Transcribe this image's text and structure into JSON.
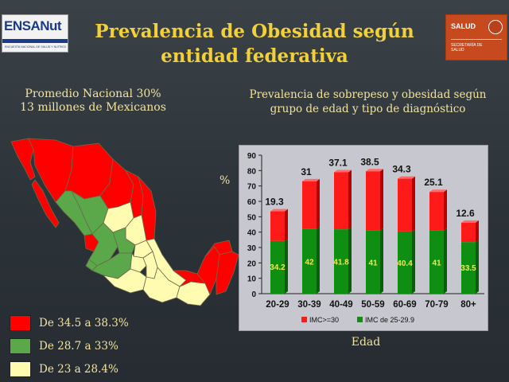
{
  "header": {
    "title_line1": "Prevalencia de Obesidad según",
    "title_line2": "entidad federativa",
    "logo_left_text": "ENSANut",
    "logo_left_subtext": "ENCUESTA NACIONAL DE SALUD Y NUTRICIÓN",
    "logo_right_text": "SALUD",
    "logo_right_subtext": "SECRETARÍA DE SALUD"
  },
  "left_panel": {
    "subtitle_line1": "Promedio Nacional 30%",
    "subtitle_line2": "13 millones de Mexicanos"
  },
  "right_panel": {
    "subtitle_line1": "Prevalencia de sobrepeso y obesidad según",
    "subtitle_line2": "grupo de edad y tipo de diagnóstico"
  },
  "map_legend": [
    {
      "label": "De 34.5 a 38.3%",
      "color": "#ff0000"
    },
    {
      "label": "De 28.7 a 33%",
      "color": "#5aa84a"
    },
    {
      "label": "De 23 a 28.4%",
      "color": "#fffbb0"
    }
  ],
  "chart_data": {
    "type": "bar",
    "stacked": true,
    "categories": [
      "20-29",
      "30-39",
      "40-49",
      "50-59",
      "60-69",
      "70-79",
      "80+"
    ],
    "series": [
      {
        "name": "IMC de 25-29.9",
        "color": "#0f8f12",
        "values": [
          34.2,
          42,
          41.8,
          41,
          40.4,
          41,
          33.5
        ]
      },
      {
        "name": "IMC>=30",
        "color": "#ff1a1a",
        "values": [
          19.3,
          31,
          37.1,
          38.5,
          34.3,
          25.1,
          12.6
        ]
      }
    ],
    "legend_order": [
      "IMC>=30",
      "IMC de 25-29.9"
    ],
    "xlabel": "Edad",
    "ylabel": "%",
    "ylim": [
      0,
      90
    ],
    "yticks": [
      0,
      10,
      20,
      30,
      40,
      50,
      60,
      70,
      80,
      90
    ],
    "legend_position": "bottom",
    "grid": false
  }
}
